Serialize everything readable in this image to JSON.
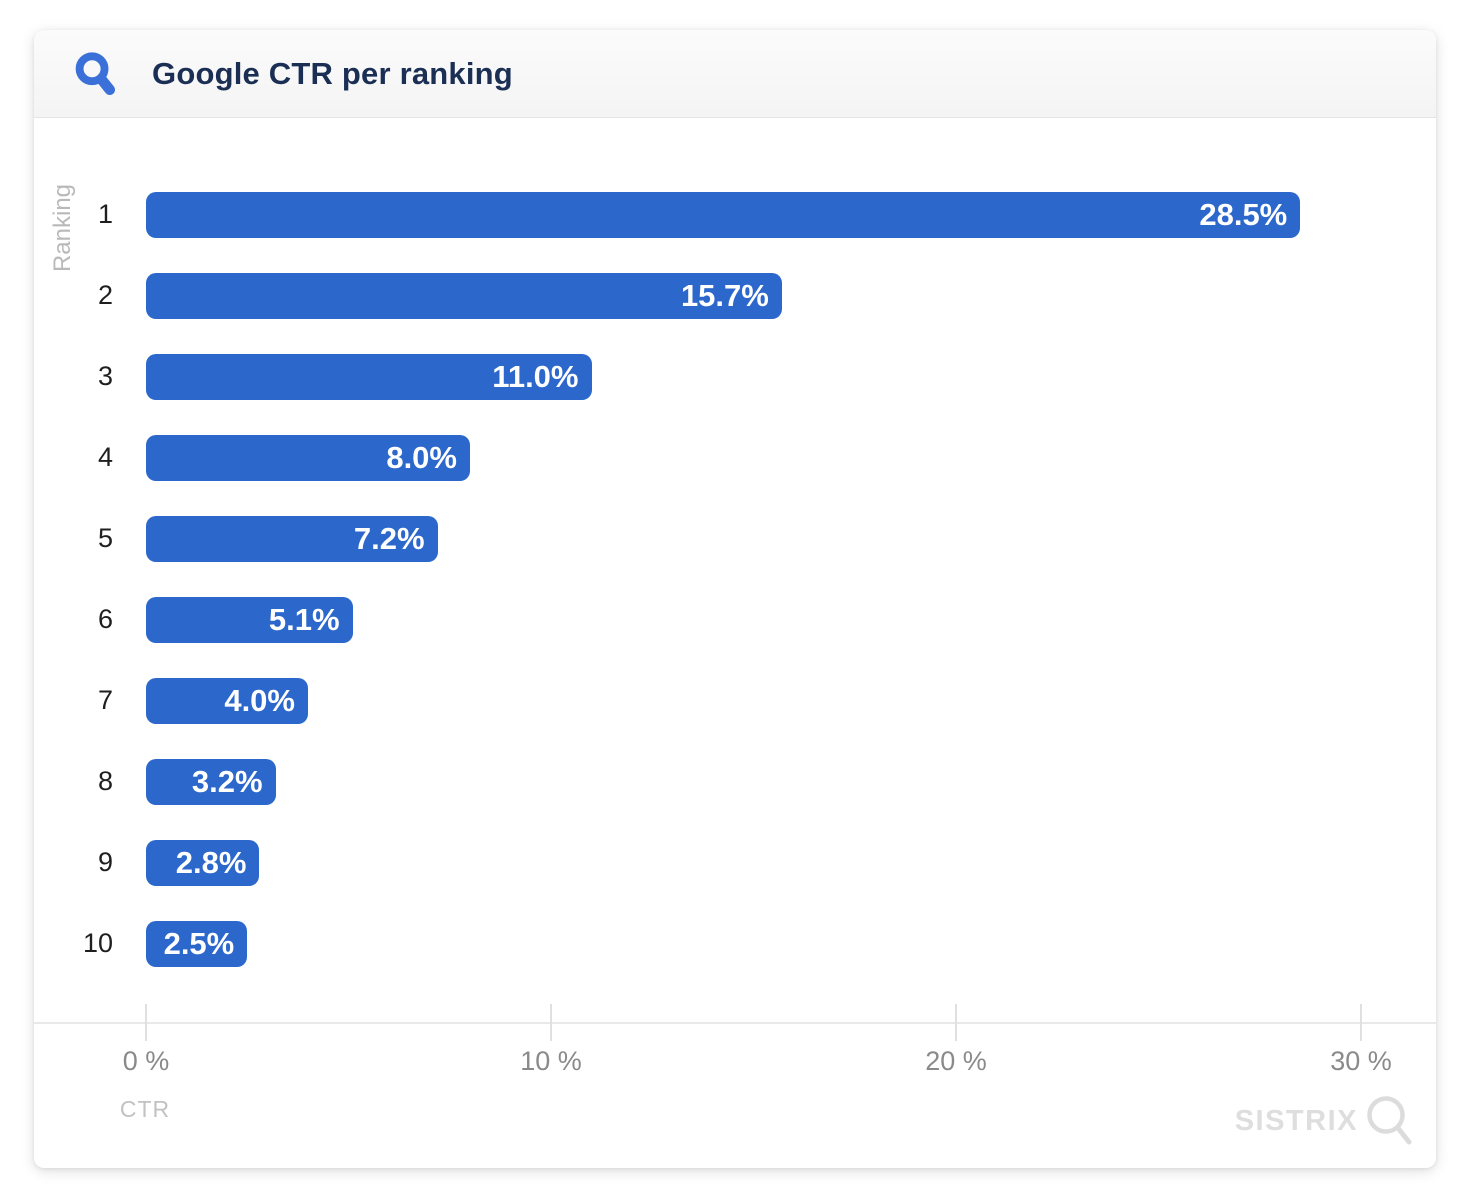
{
  "header": {
    "title": "Google CTR per ranking"
  },
  "icons": {
    "header_icon": "magnifier-icon",
    "logo_icon": "magnifier-icon"
  },
  "colors": {
    "bar_blue": "#2c67cc",
    "header_icon_blue": "#3a70d8",
    "title_navy": "#1b2f55",
    "axis_gray": "#e0e0e0",
    "tick_label_gray": "#8a8a8a",
    "muted_gray": "#b9b9b9",
    "logo_gray": "#dedede"
  },
  "chart_data": {
    "type": "bar",
    "orientation": "horizontal",
    "title": "Google CTR per ranking",
    "categories": [
      "1",
      "2",
      "3",
      "4",
      "5",
      "6",
      "7",
      "8",
      "9",
      "10"
    ],
    "values": [
      28.5,
      15.7,
      11.0,
      8.0,
      7.2,
      5.1,
      4.0,
      3.2,
      2.8,
      2.5
    ],
    "value_labels": [
      "28.5%",
      "15.7%",
      "11.0%",
      "8.0%",
      "7.2%",
      "5.1%",
      "4.0%",
      "3.2%",
      "2.8%",
      "2.5%"
    ],
    "xlabel": "CTR",
    "ylabel": "Ranking",
    "xticks": [
      0,
      10,
      20,
      30
    ],
    "xtick_labels": [
      "0 %",
      "10 %",
      "20 %",
      "30 %"
    ],
    "xlim": [
      0,
      30
    ],
    "grid": false,
    "legend": false,
    "bar_color": "#2c67cc"
  },
  "footer": {
    "brand": "SISTRIX"
  }
}
